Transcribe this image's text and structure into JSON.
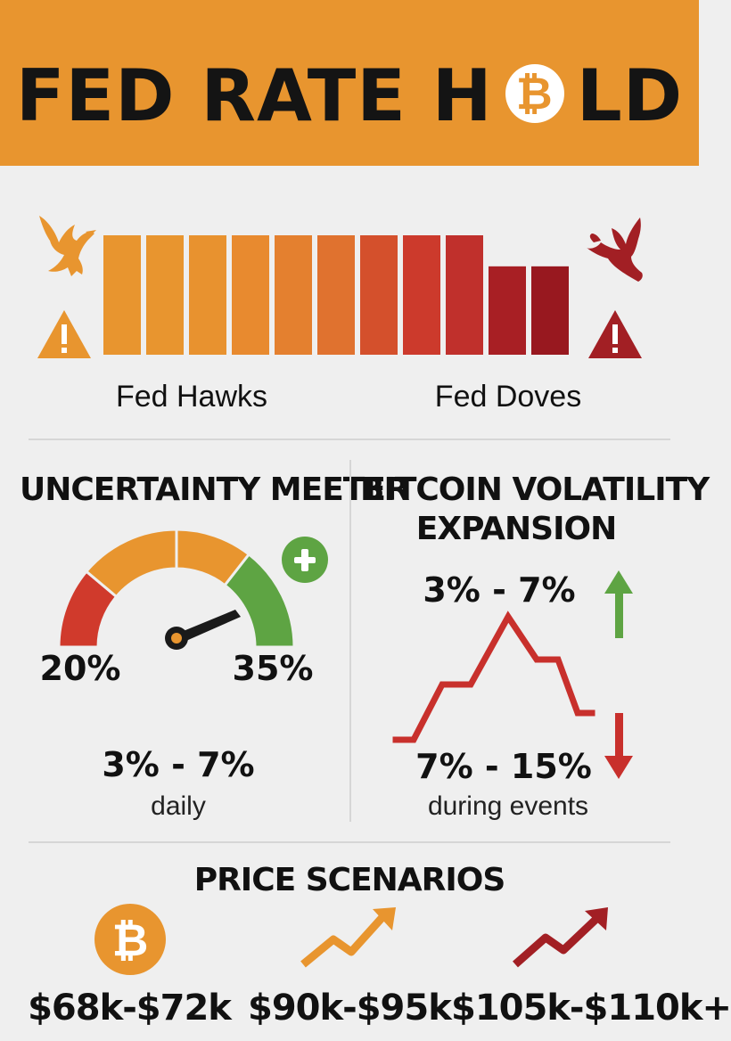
{
  "header": {
    "title_left": "FED RATE H",
    "title_right": "LD",
    "coin_symbol": "₿",
    "background_color": "#e8952f"
  },
  "sentiment_bars": {
    "left_label": "Fed Hawks",
    "right_label": "Fed Doves",
    "left_icon": "hawk-icon",
    "right_icon": "dove-icon",
    "warning_icon": "warning-icon",
    "bar_colors": [
      "#e8952f",
      "#e8952f",
      "#e8922f",
      "#e88a2f",
      "#e4802f",
      "#e0722f",
      "#d4502c",
      "#cc3a2c",
      "#c0302c",
      "#a81f24",
      "#98181f"
    ],
    "bar_levels": [
      1,
      1,
      1,
      1,
      1,
      1,
      1,
      1,
      1,
      0.74,
      0.74
    ]
  },
  "uncertainty_meter": {
    "title": "UNCERTAINTY MEETER",
    "low_label": "20%",
    "high_label": "35%",
    "range": "3% - 7%",
    "range_caption": "daily",
    "plus_icon": "plus-icon",
    "gauge_colors": [
      "#d03a2c",
      "#e8952f",
      "#e8952f",
      "#5ea443"
    ]
  },
  "volatility": {
    "title_line1": "BITCOIN VOLATILITY",
    "title_line2": "EXPANSION",
    "upper_range": "3% - 7%",
    "lower_range": "7% - 15%",
    "lower_caption": "during events",
    "up_arrow_color": "#5ea443",
    "down_arrow_color": "#c8302c",
    "line_color": "#c8302c"
  },
  "price_scenarios": {
    "title": "PRICE SCENARIOS",
    "items": [
      {
        "label": "$68k-$72k",
        "icon": "bitcoin-icon"
      },
      {
        "label": "$90k-$95k",
        "icon": "trend-up-icon"
      },
      {
        "label": "$105k-$110k+",
        "icon": "trend-up-icon"
      }
    ]
  }
}
